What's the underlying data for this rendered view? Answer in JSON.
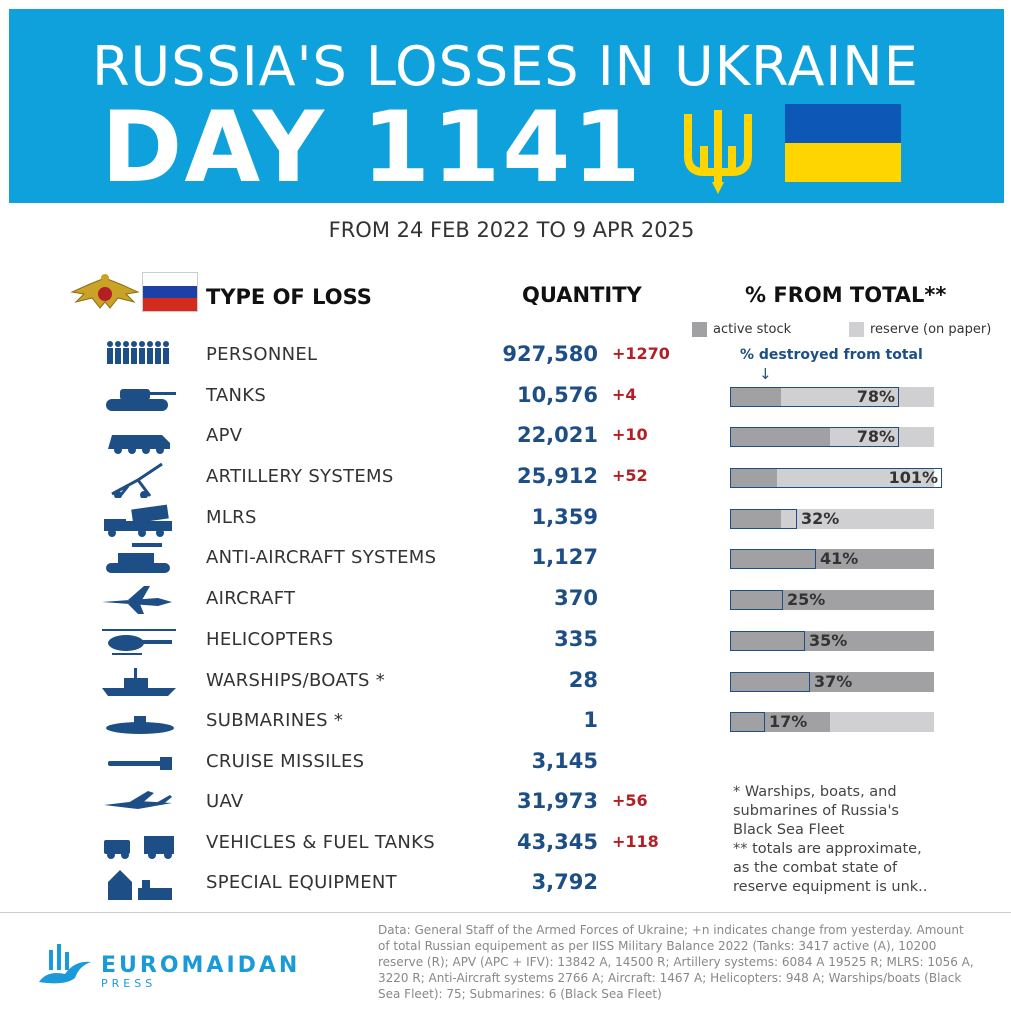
{
  "header": {
    "title": "RUSSIA'S LOSSES IN UKRAINE",
    "day": "DAY 1141",
    "date_range": "FROM 24 FEB 2022 TO 9 APR 2025"
  },
  "columns": {
    "type": "TYPE OF LOSS",
    "quantity": "QUANTITY",
    "percent": "% FROM TOTAL**"
  },
  "legend": {
    "active": "active stock",
    "reserve": "reserve (on paper)",
    "destroyed": "% destroyed from total",
    "arrow": "↓"
  },
  "colors": {
    "header_blue": "#0ea1dc",
    "ukraine_blue": "#0d57b7",
    "ukraine_yellow": "#ffd500",
    "quantity_blue": "#1d4e86",
    "change_red": "#b31f24",
    "active_gray": "#a1a1a3",
    "reserve_gray": "#d0d0d2"
  },
  "chart_data": {
    "type": "table",
    "rows": [
      {
        "icon": "soldiers-icon",
        "name": "PERSONNEL",
        "quantity": "927,580",
        "change": "+1270"
      },
      {
        "icon": "tank-icon",
        "name": "TANKS",
        "quantity": "10,576",
        "change": "+4",
        "active_share": 0.25,
        "destroyed_share": 0.83,
        "percent": "78%"
      },
      {
        "icon": "apv-icon",
        "name": "APV",
        "quantity": "22,021",
        "change": "+10",
        "active_share": 0.49,
        "destroyed_share": 0.83,
        "percent": "78%"
      },
      {
        "icon": "artillery-icon",
        "name": "ARTILLERY SYSTEMS",
        "quantity": "25,912",
        "change": "+52",
        "active_share": 0.23,
        "destroyed_share": 1.04,
        "percent": "101%"
      },
      {
        "icon": "mlrs-icon",
        "name": "MLRS",
        "quantity": "1,359",
        "change": "",
        "active_share": 0.25,
        "destroyed_share": 0.33,
        "percent": "32%"
      },
      {
        "icon": "anti-aircraft-icon",
        "name": "ANTI-AIRCRAFT SYSTEMS",
        "quantity": "1,127",
        "change": "",
        "active_share": 1.0,
        "destroyed_share": 0.42,
        "percent": "41%"
      },
      {
        "icon": "aircraft-icon",
        "name": "AIRCRAFT",
        "quantity": "370",
        "change": "",
        "active_share": 1.0,
        "destroyed_share": 0.26,
        "percent": "25%"
      },
      {
        "icon": "helicopter-icon",
        "name": "HELICOPTERS",
        "quantity": "335",
        "change": "",
        "active_share": 1.0,
        "destroyed_share": 0.37,
        "percent": "35%"
      },
      {
        "icon": "warship-icon",
        "name": "WARSHIPS/BOATS *",
        "quantity": "28",
        "change": "",
        "active_share": 1.0,
        "destroyed_share": 0.39,
        "percent": "37%"
      },
      {
        "icon": "submarine-icon",
        "name": "SUBMARINES *",
        "quantity": "1",
        "change": "",
        "active_share": 0.49,
        "destroyed_share": 0.17,
        "percent": "17%"
      },
      {
        "icon": "cruise-missile-icon",
        "name": "CRUISE MISSILES",
        "quantity": "3,145",
        "change": ""
      },
      {
        "icon": "uav-icon",
        "name": "UAV",
        "quantity": "31,973",
        "change": "+56"
      },
      {
        "icon": "vehicles-icon",
        "name": "VEHICLES & FUEL TANKS",
        "quantity": "43,345",
        "change": "+118"
      },
      {
        "icon": "special-equipment-icon",
        "name": "SPECIAL EQUIPMENT",
        "quantity": "3,792",
        "change": ""
      }
    ]
  },
  "notes": [
    "* Warships, boats, and",
    "submarines of Russia's",
    "Black Sea Fleet",
    "** totals are approximate,",
    "as the combat state of",
    "reserve equipment is unk.."
  ],
  "footer": {
    "logo_main": "EUROMAIDAN",
    "logo_sub": "PRESS",
    "source": "Data: General Staff of the Armed Forces of Ukraine; +n indicates change from yesterday. Amount of total Russian equipement as per IISS Military Balance 2022 (Tanks: 3417 active (A), 10200 reserve (R); APV (APC + IFV): 13842 A, 14500 R; Artillery systems: 6084 A 19525 R; MLRS: 1056 A, 3220 R; Anti-Aircraft systems 2766 A; Aircraft: 1467 A; Helicopters: 948 A; Warships/boats (Black Sea Fleet): 75; Submarines: 6 (Black Sea Fleet)"
  }
}
